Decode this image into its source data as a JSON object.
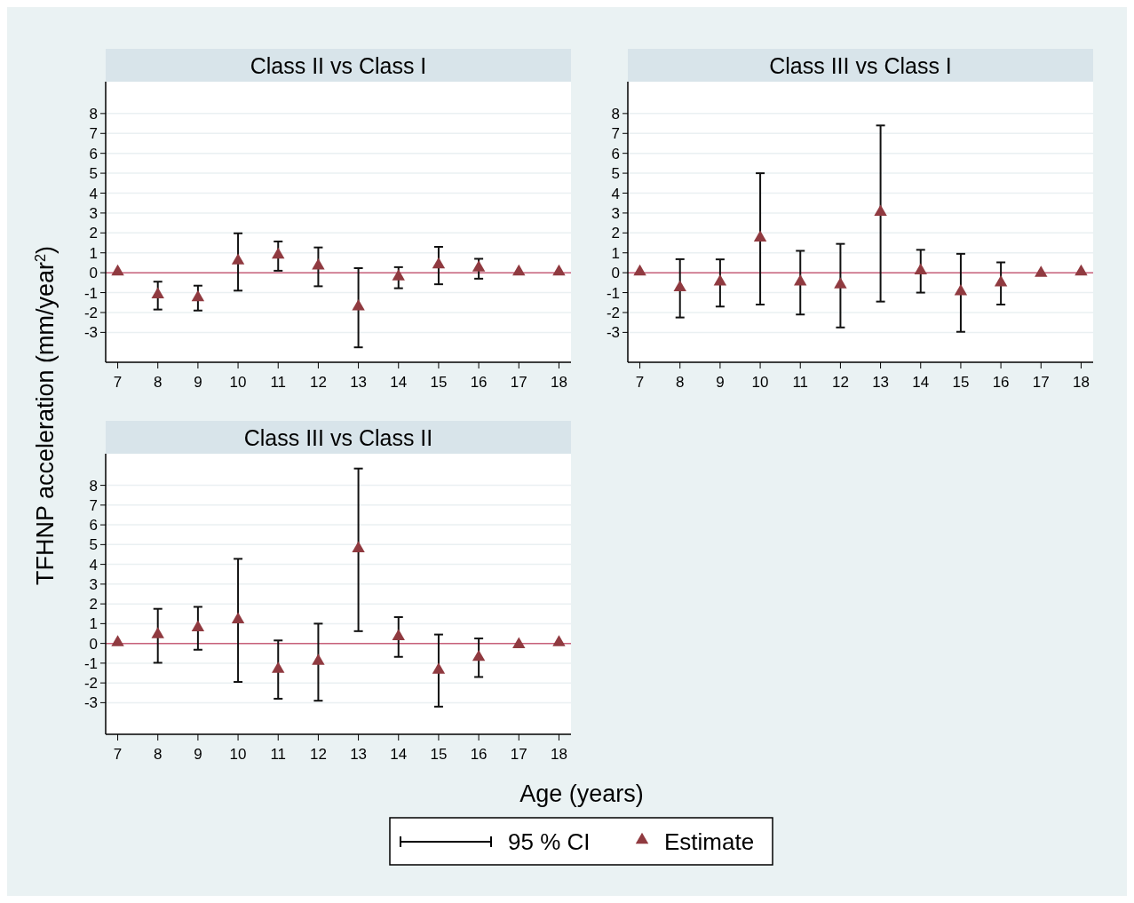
{
  "chart_data": [
    {
      "type": "scatter",
      "title": "Class II vs Class I",
      "ylabel": "TFHNP acceleration (mm/year$^{2}$)",
      "x": [
        7,
        8,
        9,
        10,
        11,
        12,
        13,
        14,
        15,
        16,
        17,
        18
      ],
      "xlim": [
        6.7,
        18.3
      ],
      "xticks": [
        7,
        8,
        9,
        10,
        11,
        12,
        13,
        14,
        15,
        16,
        17,
        18
      ],
      "ylim": [
        -4.5,
        9.6
      ],
      "yticks": [
        -3,
        -2,
        -1,
        0,
        1,
        2,
        3,
        4,
        5,
        6,
        7,
        8
      ],
      "grid": "y",
      "marker": "triangle",
      "series": [
        {
          "color": "#903a40",
          "values": [
            0.05,
            -1.1,
            -1.25,
            0.6,
            0.9,
            0.35,
            -1.7,
            -0.2,
            0.4,
            0.25,
            0.05,
            0.05
          ],
          "errors": [
            null,
            [
              -1.85,
              -0.45
            ],
            [
              -1.9,
              -0.65
            ],
            [
              -0.9,
              1.98
            ],
            [
              0.1,
              1.57
            ],
            [
              -0.68,
              1.27
            ],
            [
              -3.75,
              0.23
            ],
            [
              -0.78,
              0.28
            ],
            [
              -0.58,
              1.3
            ],
            [
              -0.3,
              0.7
            ],
            null,
            null
          ]
        }
      ],
      "ref_lines": [
        {
          "axis": "y",
          "value": 0,
          "color": "#c8607a"
        }
      ]
    },
    {
      "type": "scatter",
      "title": "Class III vs Class I",
      "x": [
        7,
        8,
        9,
        10,
        11,
        12,
        13,
        14,
        15,
        16,
        17,
        18
      ],
      "xlim": [
        6.7,
        18.3
      ],
      "xticks": [
        7,
        8,
        9,
        10,
        11,
        12,
        13,
        14,
        15,
        16,
        17,
        18
      ],
      "ylim": [
        -4.5,
        9.6
      ],
      "yticks": [
        -3,
        -2,
        -1,
        0,
        1,
        2,
        3,
        4,
        5,
        6,
        7,
        8
      ],
      "grid": "y",
      "marker": "triangle",
      "series": [
        {
          "color": "#903a40",
          "values": [
            0.05,
            -0.75,
            -0.45,
            1.75,
            -0.45,
            -0.6,
            3.05,
            0.1,
            -0.95,
            -0.5,
            -0.02,
            0.05
          ],
          "errors": [
            null,
            [
              -2.25,
              0.68
            ],
            [
              -1.7,
              0.67
            ],
            [
              -1.6,
              5.0
            ],
            [
              -2.1,
              1.1
            ],
            [
              -2.75,
              1.45
            ],
            [
              -1.45,
              7.4
            ],
            [
              -1.0,
              1.15
            ],
            [
              -2.97,
              0.95
            ],
            [
              -1.6,
              0.52
            ],
            null,
            null
          ]
        }
      ],
      "ref_lines": [
        {
          "axis": "y",
          "value": 0,
          "color": "#c8607a"
        }
      ]
    },
    {
      "type": "scatter",
      "title": "Class III vs Class II",
      "xlabel": "Age (years)",
      "x": [
        7,
        8,
        9,
        10,
        11,
        12,
        13,
        14,
        15,
        16,
        17,
        18
      ],
      "xlim": [
        6.7,
        18.3
      ],
      "xticks": [
        7,
        8,
        9,
        10,
        11,
        12,
        13,
        14,
        15,
        16,
        17,
        18
      ],
      "ylim": [
        -4.6,
        9.6
      ],
      "yticks": [
        -3,
        -2,
        -1,
        0,
        1,
        2,
        3,
        4,
        5,
        6,
        7,
        8
      ],
      "grid": "y",
      "marker": "triangle",
      "legend": "bottom",
      "annotations": [
        "95 % CI"
      ],
      "series": [
        {
          "name": "Estimate",
          "color": "#903a40",
          "values": [
            0.05,
            0.45,
            0.8,
            1.2,
            -1.3,
            -0.9,
            4.8,
            0.35,
            -1.35,
            -0.7,
            -0.05,
            0.05
          ],
          "errors": [
            null,
            [
              -0.98,
              1.75
            ],
            [
              -0.32,
              1.85
            ],
            [
              -1.95,
              4.28
            ],
            [
              -2.8,
              0.15
            ],
            [
              -2.9,
              1.0
            ],
            [
              0.62,
              8.85
            ],
            [
              -0.68,
              1.33
            ],
            [
              -3.2,
              0.45
            ],
            [
              -1.7,
              0.25
            ],
            null,
            null
          ]
        }
      ],
      "ref_lines": [
        {
          "axis": "y",
          "value": 0,
          "color": "#c8607a"
        }
      ]
    }
  ]
}
